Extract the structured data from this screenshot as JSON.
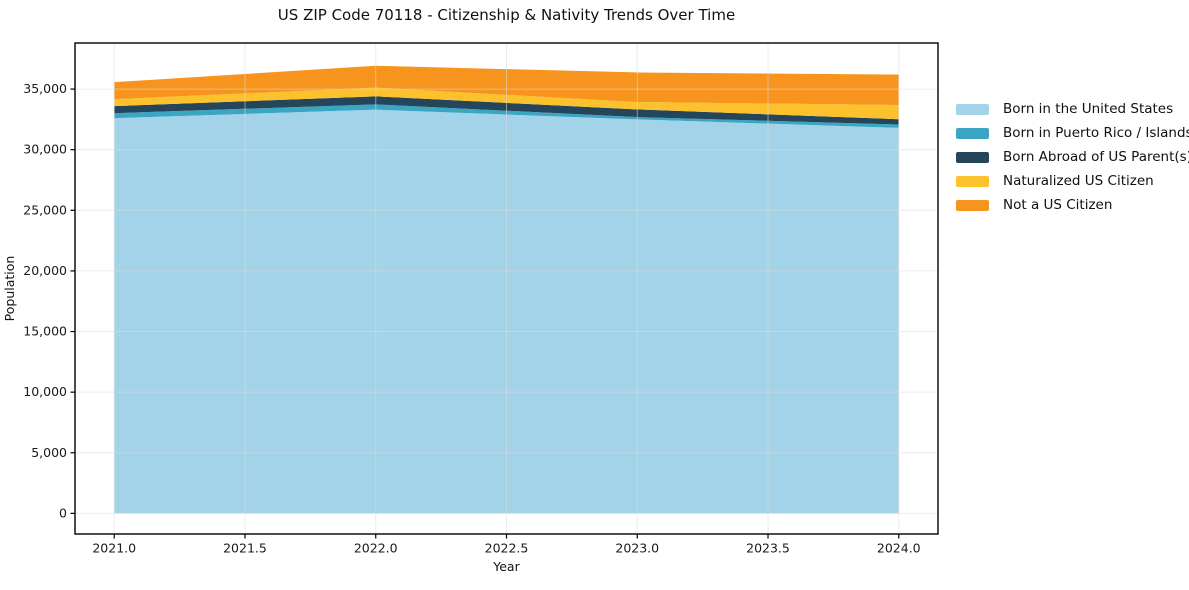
{
  "title": "US ZIP Code 70118 - Citizenship & Nativity Trends Over Time",
  "chart_data": {
    "type": "area",
    "stacked": true,
    "title": "US ZIP Code 70118 - Citizenship & Nativity Trends Over Time",
    "xlabel": "Year",
    "ylabel": "Population",
    "x": [
      2021,
      2022,
      2023,
      2024
    ],
    "series": [
      {
        "name": "Born in the United States",
        "color": "#a3d3e8",
        "values": [
          32600,
          33300,
          32500,
          31800
        ]
      },
      {
        "name": "Born in Puerto Rico / Islands",
        "color": "#3ba6c4",
        "values": [
          410,
          440,
          190,
          280
        ]
      },
      {
        "name": "Born Abroad of US Parent(s)",
        "color": "#24455a",
        "values": [
          580,
          660,
          630,
          430
        ]
      },
      {
        "name": "Naturalized US Citizen",
        "color": "#fbc22d",
        "values": [
          580,
          720,
          610,
          1180
        ]
      },
      {
        "name": "Not a US Citizen",
        "color": "#f6941e",
        "values": [
          1400,
          1800,
          2440,
          2510
        ]
      }
    ],
    "xlim": [
      2020.85,
      2024.15
    ],
    "ylim": [
      -1700,
      38800
    ],
    "xticks": [
      2021.0,
      2021.5,
      2022.0,
      2022.5,
      2023.0,
      2023.5,
      2024.0
    ],
    "yticks": [
      0,
      5000,
      10000,
      15000,
      20000,
      25000,
      30000,
      35000
    ],
    "grid": true,
    "legend_position": "right-outside",
    "colors": {
      "spine": "#000000",
      "tick_label": "#1a1a1a",
      "grid": "#dddddd"
    }
  }
}
